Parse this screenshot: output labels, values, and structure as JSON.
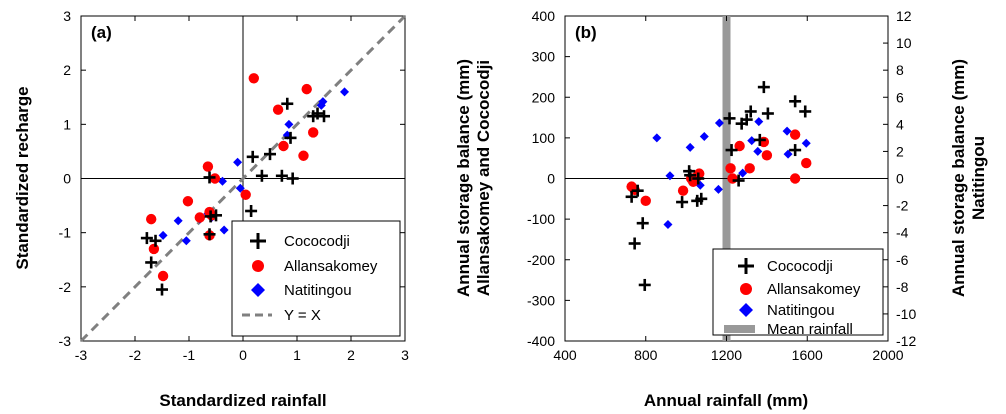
{
  "chart_data": [
    {
      "type": "scatter",
      "panel_label": "(a)",
      "xlabel": "Standardized rainfall",
      "ylabel": "Standardized recharge",
      "xlim": [
        -3,
        3
      ],
      "ylim": [
        -3,
        3
      ],
      "xticks": [
        -3,
        -2,
        -1,
        0,
        1,
        2,
        3
      ],
      "yticks": [
        -3,
        -2,
        -1,
        0,
        1,
        2,
        3
      ],
      "grid": false,
      "zero_lines": true,
      "legend_position": "bottom-right",
      "series": [
        {
          "name": "Cococodji",
          "marker": "plus",
          "color": "#000000",
          "points": [
            [
              -1.78,
              -1.1
            ],
            [
              -1.7,
              -1.55
            ],
            [
              -1.62,
              -1.15
            ],
            [
              -1.5,
              -2.05
            ],
            [
              -0.62,
              0.02
            ],
            [
              -0.62,
              -1.03
            ],
            [
              -0.5,
              -0.68
            ],
            [
              -0.6,
              -0.7
            ],
            [
              0.15,
              -0.6
            ],
            [
              0.18,
              0.4
            ],
            [
              0.35,
              0.05
            ],
            [
              0.5,
              0.45
            ],
            [
              0.72,
              0.05
            ],
            [
              0.82,
              1.38
            ],
            [
              0.88,
              0.75
            ],
            [
              0.92,
              0.0
            ],
            [
              1.3,
              1.15
            ],
            [
              1.38,
              1.2
            ],
            [
              1.5,
              1.15
            ]
          ]
        },
        {
          "name": "Allansakomey",
          "color": "#ff0000",
          "marker": "circle",
          "points": [
            [
              -1.7,
              -0.75
            ],
            [
              -1.65,
              -1.3
            ],
            [
              -1.48,
              -1.8
            ],
            [
              -1.02,
              -0.42
            ],
            [
              -0.8,
              -0.72
            ],
            [
              -0.65,
              0.22
            ],
            [
              -0.62,
              -0.62
            ],
            [
              -0.62,
              -1.05
            ],
            [
              -0.58,
              -0.68
            ],
            [
              -0.52,
              0.0
            ],
            [
              0.05,
              -0.3
            ],
            [
              0.2,
              1.85
            ],
            [
              0.65,
              1.27
            ],
            [
              0.75,
              0.6
            ],
            [
              1.12,
              0.42
            ],
            [
              1.18,
              1.65
            ],
            [
              1.3,
              0.85
            ]
          ]
        },
        {
          "name": "Natitingou",
          "color": "#0000ff",
          "marker": "diamond",
          "points": [
            [
              -1.48,
              -1.05
            ],
            [
              -1.2,
              -0.78
            ],
            [
              -1.05,
              -1.15
            ],
            [
              -0.8,
              -0.75
            ],
            [
              -0.65,
              -0.65
            ],
            [
              -0.58,
              -0.72
            ],
            [
              -0.38,
              -0.05
            ],
            [
              -0.35,
              -0.95
            ],
            [
              -0.1,
              0.3
            ],
            [
              -0.05,
              -0.18
            ],
            [
              0.82,
              0.8
            ],
            [
              0.85,
              1.0
            ],
            [
              1.45,
              1.35
            ],
            [
              1.48,
              1.42
            ],
            [
              1.88,
              1.6
            ]
          ]
        },
        {
          "name": "Y = X",
          "type": "line",
          "style": "dashed",
          "color": "#808080",
          "points": [
            [
              -3,
              -3
            ],
            [
              3,
              3
            ]
          ]
        }
      ]
    },
    {
      "type": "scatter",
      "panel_label": "(b)",
      "xlabel": "Annual rainfall (mm)",
      "ylabel_left": [
        "Annual storage balance (mm)",
        "Allansakomey and Cococodji"
      ],
      "ylabel_right": [
        "Annual storage balance (mm)",
        "Natitingou"
      ],
      "xlim": [
        400,
        2000
      ],
      "ylim_left": [
        -400,
        400
      ],
      "ylim_right": [
        -12,
        12
      ],
      "xticks": [
        400,
        800,
        1200,
        1600,
        2000
      ],
      "yticks_left": [
        -400,
        -300,
        -200,
        -100,
        0,
        100,
        200,
        300,
        400
      ],
      "yticks_right": [
        -12,
        -10,
        -8,
        -6,
        -4,
        -2,
        0,
        2,
        4,
        6,
        8,
        10,
        12
      ],
      "grid": false,
      "zero_line": true,
      "legend_position": "bottom-right",
      "mean_rainfall": 1200,
      "series": [
        {
          "name": "Cococodji",
          "marker": "plus",
          "color": "#000000",
          "axis": "left",
          "points": [
            [
              730,
              -45
            ],
            [
              745,
              -160
            ],
            [
              760,
              -30
            ],
            [
              785,
              -110
            ],
            [
              795,
              -262
            ],
            [
              980,
              -58
            ],
            [
              1015,
              18
            ],
            [
              1020,
              8
            ],
            [
              1055,
              -55
            ],
            [
              1060,
              0
            ],
            [
              1075,
              -50
            ],
            [
              1215,
              148
            ],
            [
              1225,
              70
            ],
            [
              1260,
              -5
            ],
            [
              1275,
              135
            ],
            [
              1300,
              145
            ],
            [
              1320,
              165
            ],
            [
              1365,
              95
            ],
            [
              1385,
              225
            ],
            [
              1405,
              160
            ],
            [
              1540,
              190
            ],
            [
              1540,
              70
            ],
            [
              1590,
              165
            ]
          ]
        },
        {
          "name": "Allansakomey",
          "marker": "circle",
          "color": "#ff0000",
          "axis": "left",
          "points": [
            [
              730,
              -20
            ],
            [
              745,
              -28
            ],
            [
              800,
              -55
            ],
            [
              985,
              -30
            ],
            [
              1025,
              0
            ],
            [
              1035,
              -8
            ],
            [
              1055,
              5
            ],
            [
              1065,
              12
            ],
            [
              1220,
              25
            ],
            [
              1230,
              0
            ],
            [
              1265,
              80
            ],
            [
              1315,
              25
            ],
            [
              1385,
              90
            ],
            [
              1400,
              57
            ],
            [
              1540,
              108
            ],
            [
              1540,
              0
            ],
            [
              1595,
              38
            ]
          ]
        },
        {
          "name": "Natitingou",
          "marker": "diamond",
          "color": "#0000ff",
          "axis": "right",
          "points": [
            [
              740,
              -0.8
            ],
            [
              855,
              3.0
            ],
            [
              910,
              -3.4
            ],
            [
              920,
              0.2
            ],
            [
              1020,
              2.3
            ],
            [
              1040,
              0.0
            ],
            [
              1070,
              -0.5
            ],
            [
              1090,
              3.1
            ],
            [
              1160,
              -0.8
            ],
            [
              1165,
              4.1
            ],
            [
              1280,
              0.4
            ],
            [
              1325,
              2.8
            ],
            [
              1355,
              2.0
            ],
            [
              1360,
              4.2
            ],
            [
              1500,
              3.5
            ],
            [
              1505,
              1.8
            ],
            [
              1595,
              2.6
            ]
          ]
        }
      ]
    }
  ],
  "legend_a": [
    {
      "label": "Cococodji"
    },
    {
      "label": "Allansakomey"
    },
    {
      "label": "Natitingou"
    },
    {
      "label": "Y = X"
    }
  ],
  "legend_b": [
    {
      "label": "Cococodji"
    },
    {
      "label": "Allansakomey"
    },
    {
      "label": "Natitingou"
    },
    {
      "label": "Mean rainfall"
    }
  ],
  "colors": {
    "cococodji": "#000000",
    "allansakomey": "#ff0000",
    "natitingou": "#0000ff",
    "yx_line": "#808080",
    "mean_rainfall": "#999999"
  }
}
